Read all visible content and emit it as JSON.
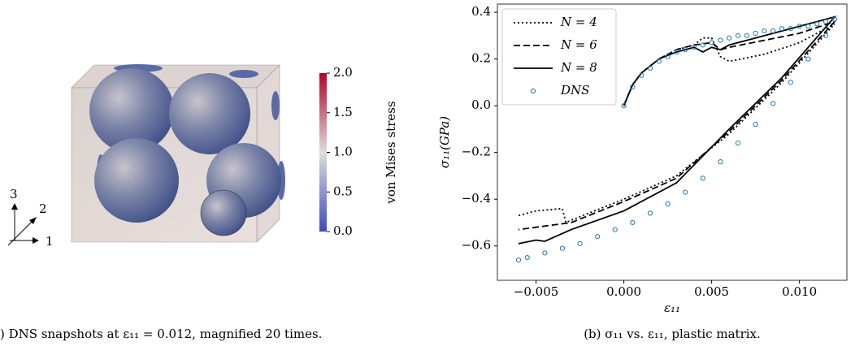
{
  "chart_data": [
    {
      "type": "colorbar",
      "label": "von Mises stress",
      "caption": ") DNS snapshots at ε₁₁ = 0.012, magnified 20 times.",
      "axis_labels": [
        "1",
        "2",
        "3"
      ],
      "colormap": [
        "#3b4cc0",
        "#dddddd",
        "#b40426"
      ],
      "ylim": [
        0,
        2
      ],
      "yticks": [
        {
          "value": 0,
          "label": "0.0"
        },
        {
          "value": 0.5,
          "label": "0.5"
        },
        {
          "value": 1,
          "label": "1.0"
        },
        {
          "value": 1.5,
          "label": "1.5"
        },
        {
          "value": 2,
          "label": "2.0"
        }
      ]
    },
    {
      "type": "line",
      "caption": "(b) σ₁₁ vs. ε₁₁, plastic matrix.",
      "x_label": "ε₁₁",
      "y_label": "σ₁₁(GPa)",
      "legend": "upper left",
      "xlim": [
        -0.0072,
        0.0127
      ],
      "ylim": [
        -0.747,
        0.435
      ],
      "xticks": [
        {
          "value": -0.005,
          "label": "−0.005"
        },
        {
          "value": 0,
          "label": "0.000"
        },
        {
          "value": 0.005,
          "label": "0.005"
        },
        {
          "value": 0.01,
          "label": "0.010"
        }
      ],
      "yticks": [
        {
          "value": -0.6,
          "label": "−0.6"
        },
        {
          "value": -0.4,
          "label": "−0.4"
        },
        {
          "value": -0.2,
          "label": "−0.2"
        },
        {
          "value": 0,
          "label": "0.0"
        },
        0.2,
        0.4
      ],
      "series": [
        {
          "name": "N = 4",
          "style": "dotted",
          "color": "#000000",
          "x": [
            0,
            0.0005,
            0.001,
            0.002,
            0.003,
            0.004,
            0.0045,
            0.005,
            0.0055,
            0.006,
            0.008,
            0.01,
            0.012,
            0.009,
            0.006,
            0.003,
            0,
            -0.003,
            -0.0033,
            -0.0035,
            -0.005,
            -0.006
          ],
          "values": [
            0,
            0.09,
            0.14,
            0.2,
            0.24,
            0.26,
            0.29,
            0.29,
            0.21,
            0.19,
            0.22,
            0.27,
            0.35,
            0.1,
            -0.12,
            -0.3,
            -0.4,
            -0.49,
            -0.5,
            -0.44,
            -0.45,
            -0.47
          ]
        },
        {
          "name": "N = 6",
          "style": "dashed",
          "color": "#000000",
          "x": [
            0,
            0.0005,
            0.001,
            0.002,
            0.003,
            0.004,
            0.005,
            0.0055,
            0.006,
            0.008,
            0.01,
            0.012,
            0.009,
            0.006,
            0.003,
            0,
            -0.003,
            -0.005,
            -0.006
          ],
          "values": [
            0,
            0.09,
            0.14,
            0.2,
            0.24,
            0.26,
            0.27,
            0.24,
            0.25,
            0.28,
            0.31,
            0.36,
            0.11,
            -0.11,
            -0.31,
            -0.41,
            -0.5,
            -0.52,
            -0.53
          ]
        },
        {
          "name": "N = 8",
          "style": "solid",
          "color": "#000000",
          "x": [
            0,
            0.0005,
            0.001,
            0.002,
            0.003,
            0.004,
            0.0045,
            0.005,
            0.0055,
            0.006,
            0.008,
            0.01,
            0.012,
            0.009,
            0.006,
            0.003,
            0,
            -0.003,
            -0.0045,
            -0.005,
            -0.006
          ],
          "values": [
            0,
            0.09,
            0.14,
            0.2,
            0.23,
            0.25,
            0.23,
            0.25,
            0.24,
            0.26,
            0.3,
            0.34,
            0.38,
            0.12,
            -0.1,
            -0.33,
            -0.45,
            -0.53,
            -0.58,
            -0.575,
            -0.59
          ]
        },
        {
          "name": "DNS",
          "style": "markers",
          "color": "#1f77b4",
          "x": [
            0,
            0.0005,
            0.001,
            0.0015,
            0.002,
            0.0025,
            0.003,
            0.0035,
            0.004,
            0.0045,
            0.005,
            0.0055,
            0.006,
            0.0065,
            0.007,
            0.0075,
            0.008,
            0.0085,
            0.009,
            0.0095,
            0.01,
            0.0105,
            0.011,
            0.0115,
            0.012,
            0.0115,
            0.0105,
            0.0095,
            0.0085,
            0.0075,
            0.0065,
            0.0055,
            0.0045,
            0.0035,
            0.0025,
            0.0015,
            0.0005,
            -0.0005,
            -0.0015,
            -0.0025,
            -0.0035,
            -0.0045,
            -0.0055,
            -0.006
          ],
          "values": [
            0,
            0.08,
            0.13,
            0.16,
            0.19,
            0.21,
            0.23,
            0.24,
            0.25,
            0.26,
            0.27,
            0.28,
            0.29,
            0.3,
            0.3,
            0.31,
            0.32,
            0.32,
            0.33,
            0.33,
            0.34,
            0.34,
            0.35,
            0.36,
            0.37,
            0.3,
            0.2,
            0.1,
            0.01,
            -0.08,
            -0.16,
            -0.24,
            -0.31,
            -0.37,
            -0.42,
            -0.46,
            -0.5,
            -0.53,
            -0.56,
            -0.59,
            -0.61,
            -0.63,
            -0.65,
            -0.66
          ]
        }
      ]
    }
  ]
}
